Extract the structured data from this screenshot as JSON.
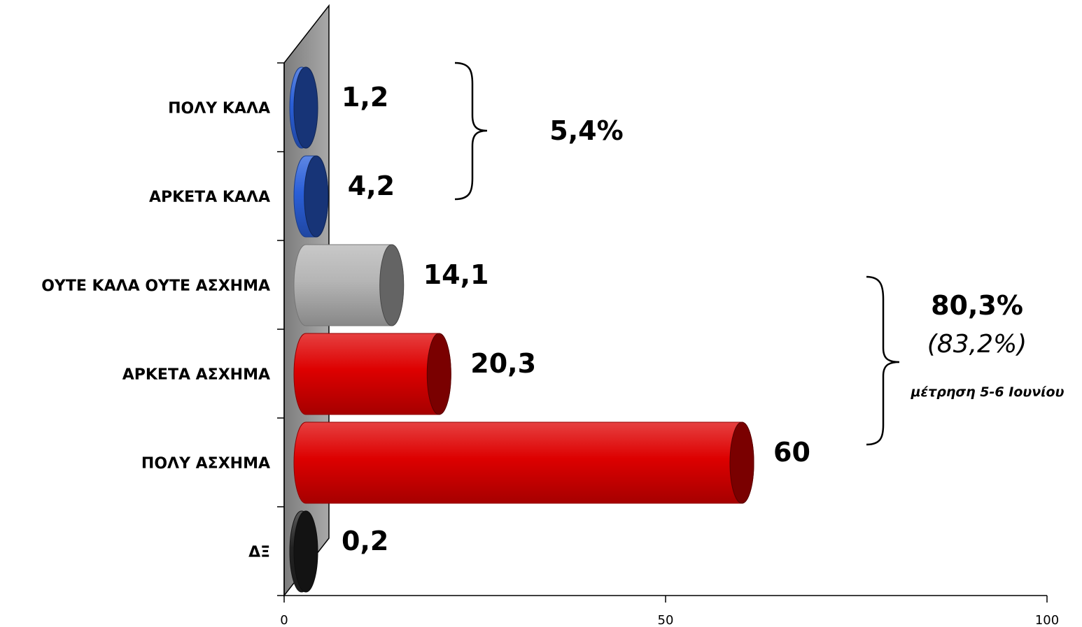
{
  "chart_data": {
    "type": "bar",
    "orientation": "horizontal",
    "style": "3d-cylinder",
    "categories": [
      "ΠΟΛΥ ΚΑΛΑ",
      "ΑΡΚΕΤΑ ΚΑΛΑ",
      "ΟΥΤΕ ΚΑΛΑ ΟΥΤΕ ΑΣΧΗΜΑ",
      "ΑΡΚΕΤΑ ΑΣΧΗΜΑ",
      "ΠΟΛΥ ΑΣΧΗΜΑ",
      "ΔΞ"
    ],
    "values": [
      1.2,
      4.2,
      14.1,
      20.3,
      60,
      0.2
    ],
    "value_labels": [
      "1,2",
      "4,2",
      "14,1",
      "20,3",
      "60",
      "0,2"
    ],
    "colors": [
      "#2a5fd8",
      "#2a5fd8",
      "#b5b5b5",
      "#dd0000",
      "#dd0000",
      "#222222"
    ],
    "xlim": [
      0,
      100
    ],
    "xticks": [
      0,
      50,
      100
    ],
    "xtick_labels": [
      "0",
      "50",
      "100"
    ],
    "title": "",
    "xlabel": "",
    "ylabel": "",
    "grid": false,
    "annotations": [
      {
        "brace_categories": [
          0,
          1
        ],
        "total": "5,4%"
      },
      {
        "brace_categories": [
          3,
          4
        ],
        "total": "80,3%",
        "previous": "(83,2%)",
        "note": "μέτρηση 5-6 Ιουνίου"
      }
    ]
  }
}
